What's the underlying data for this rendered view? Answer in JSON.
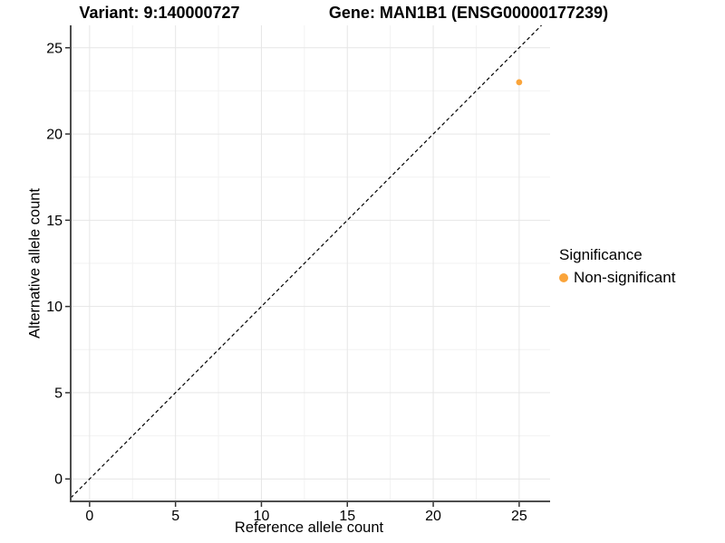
{
  "chart_data": {
    "type": "scatter",
    "title_variant": "Variant: 9:140000727",
    "title_gene": "Gene: MAN1B1 (ENSG00000177239)",
    "xlabel": "Reference allele count",
    "ylabel": "Alternative allele count",
    "xticks": [
      0,
      5,
      10,
      15,
      20,
      25
    ],
    "yticks": [
      0,
      5,
      10,
      15,
      20,
      25
    ],
    "xlim": [
      -1.1,
      26.8
    ],
    "ylim": [
      -1.3,
      26.3
    ],
    "grid": true,
    "identity_line": {
      "style": "dashed",
      "color": "#000000"
    },
    "points": [
      {
        "x": 25,
        "y": 23,
        "series": "Non-significant"
      }
    ],
    "point_radius": 3.4,
    "colors": {
      "point": "#FAA43A",
      "axis_line": "#4d4d4d",
      "tick_mark": "#333333",
      "grid_major": "#e6e6e6",
      "grid_minor": "#f2f2f2",
      "text": "#000000",
      "background": "#ffffff"
    },
    "legend": {
      "title": "Significance",
      "position": "right",
      "items": [
        {
          "label": "Non-significant",
          "color": "#FAA43A"
        }
      ]
    }
  }
}
